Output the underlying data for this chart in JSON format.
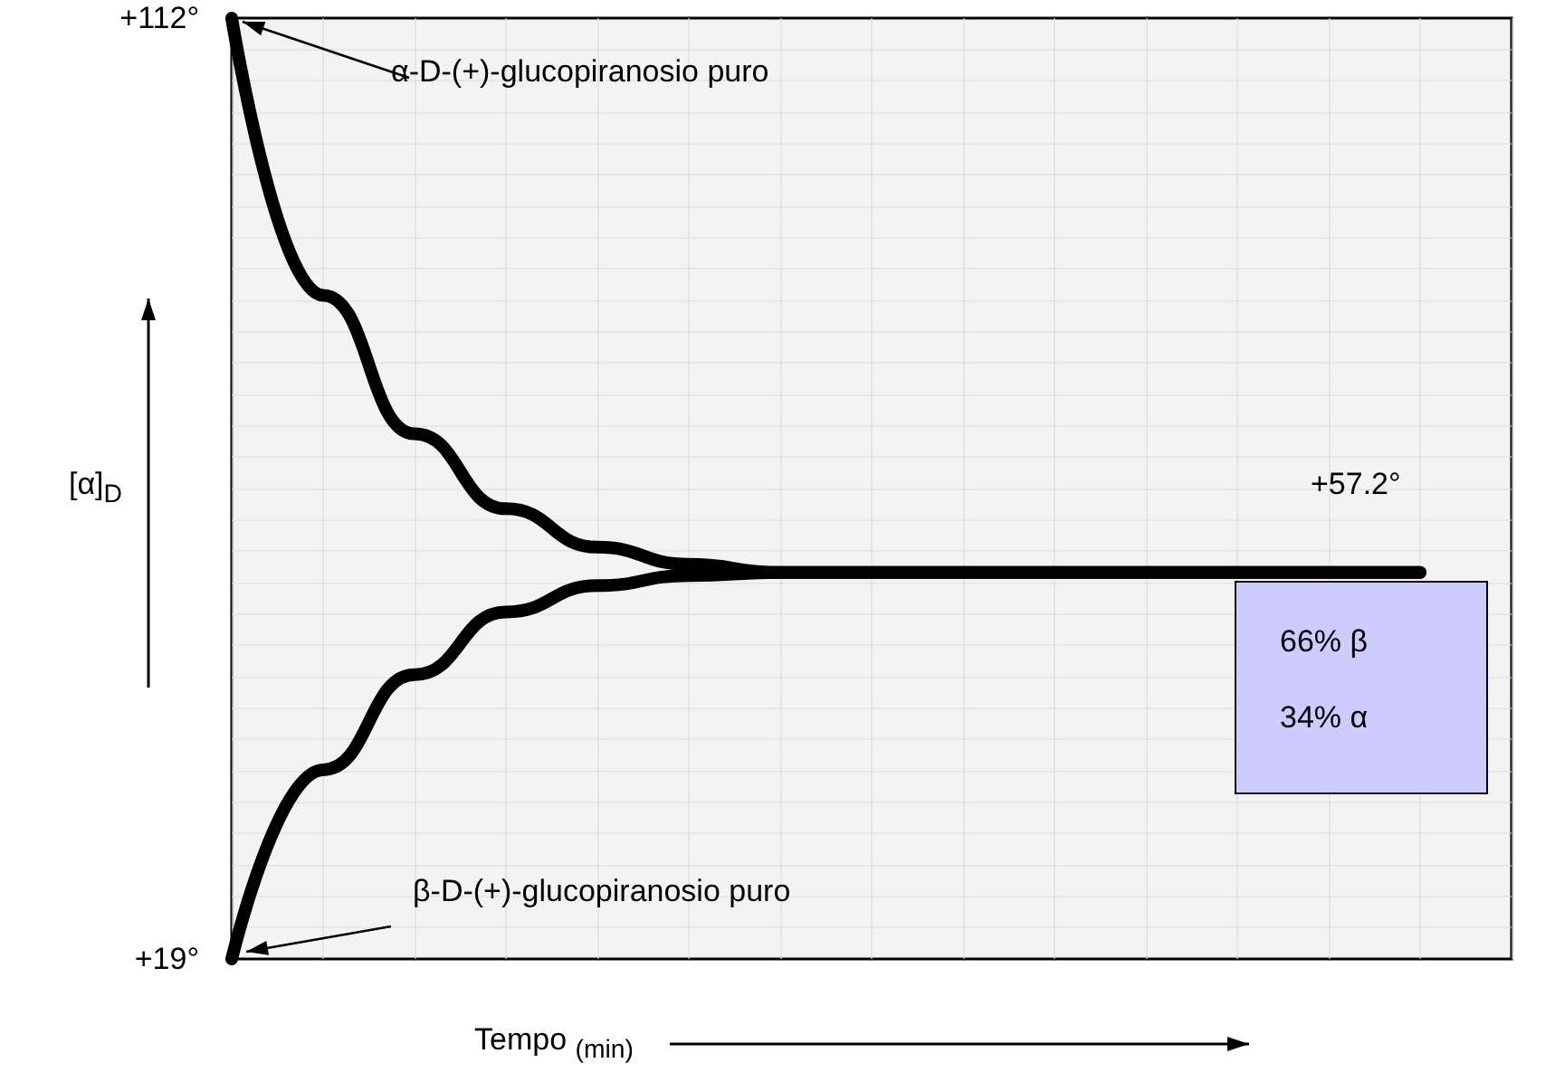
{
  "chart_data": {
    "type": "line",
    "xlabel": "Tempo $_{(min)}$",
    "ylabel": "[α]$_{D}$",
    "categories": [
      null,
      null,
      null,
      null,
      null,
      null,
      null,
      null,
      null,
      null,
      null,
      null,
      null,
      null,
      null
    ],
    "series": [
      {
        "color": "#000000",
        "values": [
          112,
          84.6,
          70.9,
          63.5,
          59.7,
          58.0,
          57.2,
          57.2,
          57.2,
          57.2,
          57.2,
          57.2,
          57.2,
          57.2,
          null
        ]
      },
      {
        "color": "#000000",
        "values": [
          19,
          37.7,
          47.1,
          53.3,
          55.9,
          56.9,
          57.2,
          57.2,
          57.2,
          57.2,
          57.2,
          57.2,
          57.2,
          57.2,
          null
        ]
      }
    ],
    "ylim": [
      19,
      112
    ],
    "yticks": [
      {
        "value": 19,
        "label": "+19°"
      },
      {
        "value": 112,
        "label": "+112°"
      }
    ],
    "annotations": [
      "α-D-(+)-glucopiranosio puro",
      "β-D-(+)-glucopiranosio puro",
      {
        "text": "+57.2°",
        "y": 57.2
      },
      "66% β",
      "34% α"
    ],
    "grid": true,
    "line_style": "solid"
  }
}
